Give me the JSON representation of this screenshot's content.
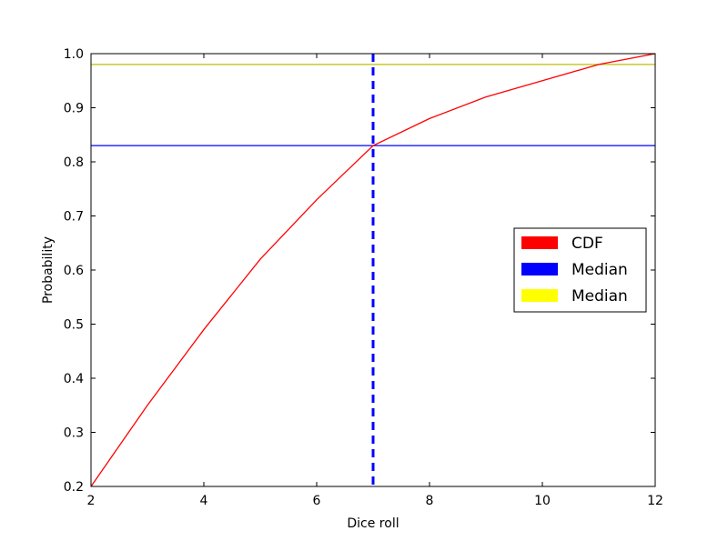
{
  "chart_data": {
    "type": "line",
    "xlabel": "Dice roll",
    "ylabel": "Probability",
    "xlim": [
      2,
      12
    ],
    "ylim": [
      0.2,
      1.0
    ],
    "x_ticks": [
      2,
      4,
      6,
      8,
      10,
      12
    ],
    "y_ticks": [
      0.2,
      0.3,
      0.4,
      0.5,
      0.6,
      0.7,
      0.8,
      0.9,
      1.0
    ],
    "grid": false,
    "legend_position": "center-right",
    "series": [
      {
        "name": "CDF",
        "color": "#ff0000",
        "x": [
          2,
          3,
          4,
          5,
          6,
          7,
          8,
          9,
          10,
          11,
          12
        ],
        "y": [
          0.2,
          0.35,
          0.49,
          0.62,
          0.73,
          0.83,
          0.88,
          0.92,
          0.95,
          0.98,
          1.0
        ]
      }
    ],
    "reference_lines": [
      {
        "orientation": "horizontal",
        "value": 0.83,
        "color": "#0000ff",
        "style": "solid"
      },
      {
        "orientation": "horizontal",
        "value": 0.98,
        "color": "#bfbf00",
        "style": "solid"
      },
      {
        "orientation": "vertical",
        "value": 7,
        "color": "#0000ff",
        "style": "dashed"
      }
    ],
    "legend": [
      {
        "label": "CDF",
        "color": "#ff0000"
      },
      {
        "label": "Median",
        "color": "#0000ff"
      },
      {
        "label": "Median",
        "color": "#ffff00"
      }
    ]
  }
}
